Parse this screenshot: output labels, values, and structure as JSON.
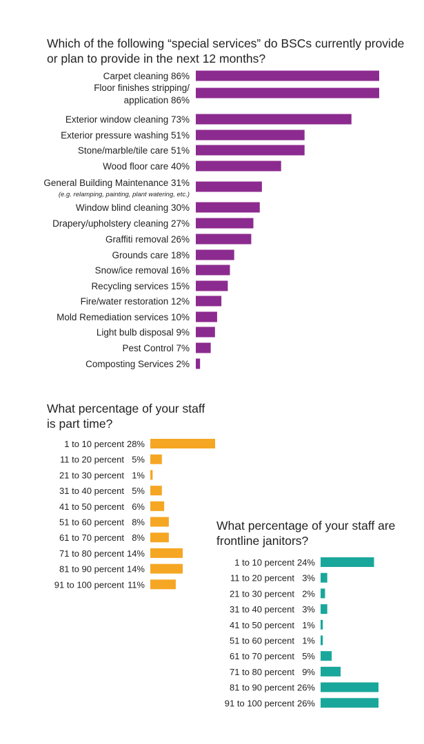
{
  "chart_data": [
    {
      "type": "bar",
      "orientation": "horizontal",
      "title": "Which of the following “special services” do BSCs currently provide or plan to provide in the next 12 months?",
      "color": "#8c2b8f",
      "categories": [
        "Carpet cleaning 86%",
        "Floor finishes stripping/ application 86%",
        "Exterior window cleaning 73%",
        "Exterior pressure washing 51%",
        "Stone/marble/tile care 51%",
        "Wood floor care 40%",
        "General Building Maintenance 31%",
        "Window blind cleaning 30%",
        "Drapery/upholstery cleaning 27%",
        "Graffiti removal 26%",
        "Grounds care 18%",
        "Snow/ice removal 16%",
        "Recycling services 15%",
        "Fire/water restoration 12%",
        "Mold Remediation services 10%",
        "Light bulb disposal 9%",
        "Pest Control 7%",
        "Composting Services 2%"
      ],
      "values": [
        86,
        86,
        73,
        51,
        51,
        40,
        31,
        30,
        27,
        26,
        18,
        16,
        15,
        12,
        10,
        9,
        7,
        2
      ],
      "notes": [
        "",
        "",
        "",
        "",
        "",
        "",
        "(e.g. relamping, painting, plant watering, etc.)",
        "",
        "",
        "",
        "",
        "",
        "",
        "",
        "",
        "",
        "",
        ""
      ]
    },
    {
      "type": "bar",
      "orientation": "horizontal",
      "title": "What percentage of your staff is part time?",
      "color": "#f5a623",
      "categories": [
        "1 to 10 percent",
        "11 to 20 percent",
        "21 to 30 percent",
        "31 to 40 percent",
        "41 to 50 percent",
        "51 to 60 percent",
        "61 to 70 percent",
        "71 to 80 percent",
        "81 to 90 percent",
        "91 to 100 percent"
      ],
      "value_labels": [
        "28%",
        "5%",
        "1%",
        "5%",
        "6%",
        "8%",
        "8%",
        "14%",
        "14%",
        "11%"
      ],
      "values": [
        28,
        5,
        1,
        5,
        6,
        8,
        8,
        14,
        14,
        11
      ]
    },
    {
      "type": "bar",
      "orientation": "horizontal",
      "title": "What percentage of your staff are frontline janitors?",
      "color": "#1aa79b",
      "categories": [
        "1 to 10 percent",
        "11 to 20 percent",
        "21 to 30 percent",
        "31 to 40 percent",
        "41 to 50 percent",
        "51 to 60 percent",
        "61 to 70 percent",
        "71 to 80 percent",
        "81 to 90 percent",
        "91 to 100 percent"
      ],
      "value_labels": [
        "24%",
        "3%",
        "2%",
        "3%",
        "1%",
        "1%",
        "5%",
        "9%",
        "26%",
        "26%"
      ],
      "values": [
        24,
        3,
        2,
        3,
        1,
        1,
        5,
        9,
        26,
        26
      ]
    }
  ]
}
